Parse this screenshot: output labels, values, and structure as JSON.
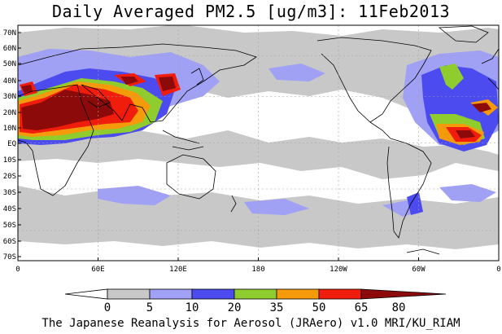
{
  "title": "Daily Averaged PM2.5 [ug/m3]: 11Feb2013",
  "footer": "The Japanese Reanalysis for Aerosol (JRAero) v1.0 MRI/KU_RIAM",
  "map": {
    "lat_labels": [
      "70N",
      "60N",
      "50N",
      "40N",
      "30N",
      "20N",
      "10N",
      "EQ",
      "10S",
      "20S",
      "30S",
      "40S",
      "50S",
      "60S",
      "70S"
    ],
    "lon_labels": [
      "0",
      "60E",
      "120E",
      "180",
      "120W",
      "60W",
      "0"
    ]
  },
  "colorbar": {
    "labels": [
      "0",
      "5",
      "10",
      "20",
      "35",
      "50",
      "65",
      "80"
    ],
    "colors": [
      "#ffffff",
      "#c8c8c8",
      "#a0a0f5",
      "#4b4bf0",
      "#8fcc2e",
      "#f59a0a",
      "#f01c0c",
      "#8c0a0a"
    ]
  },
  "colors": {
    "land_outline": "#000000",
    "grid": "#a0a0a0",
    "background": "#ffffff"
  }
}
